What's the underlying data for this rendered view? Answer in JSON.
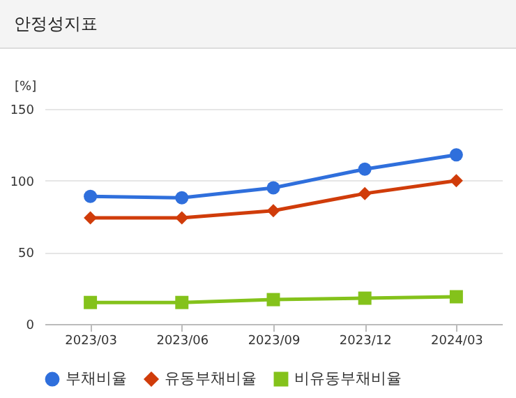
{
  "chart_data": {
    "type": "line",
    "title": "안정성지표",
    "ylabel": "[%]",
    "categories": [
      "2023/03",
      "2023/06",
      "2023/09",
      "2023/12",
      "2024/03"
    ],
    "series": [
      {
        "name": "부채비율",
        "color": "#2f6fdc",
        "values": [
          89,
          88,
          95,
          108,
          118
        ],
        "marker": "circle"
      },
      {
        "name": "유동부채비율",
        "color": "#d03c0a",
        "values": [
          74,
          74,
          79,
          91,
          100
        ],
        "marker": "diamond"
      },
      {
        "name": "비유동부채비율",
        "color": "#84c21b",
        "values": [
          15,
          15,
          17,
          18,
          19
        ],
        "marker": "square"
      }
    ],
    "ylim": [
      0,
      150
    ],
    "yticks": [
      0,
      50,
      100,
      150
    ],
    "grid": "y",
    "legend": "bottom",
    "line_style": "solid"
  }
}
